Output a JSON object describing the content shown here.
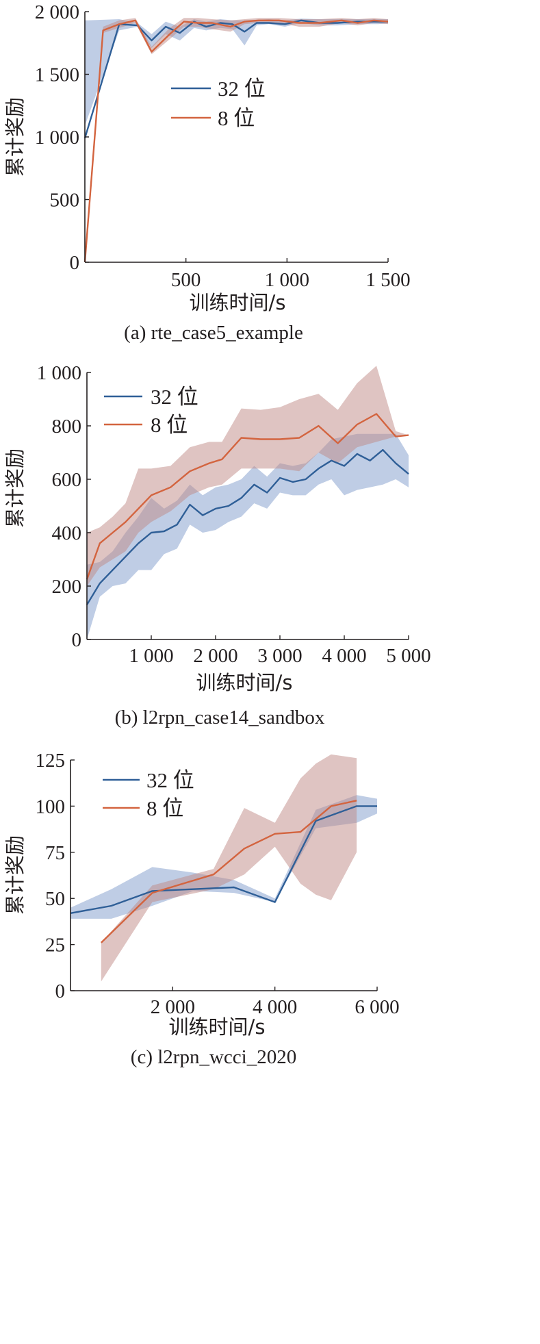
{
  "colors": {
    "s32_line": "#2f5f97",
    "s32_band": "#7f9ccb",
    "s8_line": "#d3643f",
    "s8_band": "#bf8a86",
    "axis": "#231f20"
  },
  "chart_data": [
    {
      "type": "line",
      "caption": "(a) rte_case5_example",
      "xlabel": "训练时间/s",
      "ylabel": "累计奖励",
      "xlim": [
        0,
        1500
      ],
      "ylim": [
        0,
        2000
      ],
      "xticks": [
        500,
        1000,
        1500
      ],
      "xtick_labels": [
        "500",
        "1 000",
        "1 500"
      ],
      "yticks": [
        0,
        500,
        1000,
        1500,
        2000
      ],
      "ytick_labels": [
        "0",
        "500",
        "1 000",
        "1 500",
        "2 000"
      ],
      "legend_position": "center",
      "series": [
        {
          "name": "32 位",
          "x": [
            0,
            170,
            260,
            330,
            400,
            470,
            540,
            600,
            670,
            730,
            790,
            850,
            910,
            990,
            1070,
            1160,
            1250,
            1350,
            1450,
            1500
          ],
          "y": [
            990,
            1900,
            1890,
            1770,
            1880,
            1830,
            1920,
            1880,
            1910,
            1900,
            1840,
            1910,
            1910,
            1900,
            1930,
            1910,
            1910,
            1920,
            1920,
            1920
          ],
          "band_low": [
            1090,
            1850,
            1880,
            1710,
            1820,
            1770,
            1870,
            1850,
            1870,
            1860,
            1730,
            1890,
            1900,
            1880,
            1910,
            1890,
            1890,
            1900,
            1900,
            1905
          ],
          "band_high": [
            1930,
            1940,
            1910,
            1820,
            1920,
            1880,
            1940,
            1920,
            1940,
            1930,
            1930,
            1935,
            1940,
            1930,
            1945,
            1940,
            1940,
            1940,
            1940,
            1940
          ]
        },
        {
          "name": "8 位",
          "x": [
            0,
            90,
            170,
            250,
            330,
            420,
            490,
            560,
            630,
            720,
            790,
            860,
            960,
            1060,
            1160,
            1270,
            1350,
            1430,
            1500
          ],
          "y": [
            0,
            1850,
            1900,
            1930,
            1680,
            1820,
            1920,
            1910,
            1910,
            1880,
            1920,
            1930,
            1930,
            1910,
            1910,
            1930,
            1910,
            1930,
            1920
          ],
          "band_low": [
            0,
            1830,
            1870,
            1910,
            1660,
            1780,
            1880,
            1880,
            1860,
            1840,
            1900,
            1910,
            1910,
            1880,
            1880,
            1910,
            1890,
            1910,
            1900
          ],
          "band_high": [
            0,
            1880,
            1930,
            1950,
            1720,
            1870,
            1950,
            1950,
            1940,
            1930,
            1940,
            1950,
            1950,
            1940,
            1940,
            1950,
            1940,
            1950,
            1940
          ]
        }
      ]
    },
    {
      "type": "line",
      "caption": "(b) l2rpn_case14_sandbox",
      "xlabel": "训练时间/s",
      "ylabel": "累计奖励",
      "xlim": [
        0,
        5000
      ],
      "ylim": [
        0,
        1000
      ],
      "xticks": [
        1000,
        2000,
        3000,
        4000,
        5000
      ],
      "xtick_labels": [
        "1 000",
        "2 000",
        "3 000",
        "4 000",
        "5 000"
      ],
      "yticks": [
        0,
        200,
        400,
        600,
        800,
        1000
      ],
      "ytick_labels": [
        "0",
        "200",
        "400",
        "600",
        "800",
        "1 000"
      ],
      "legend_position": "top-left",
      "series": [
        {
          "name": "32 位",
          "x": [
            0,
            200,
            400,
            600,
            800,
            1000,
            1200,
            1400,
            1600,
            1800,
            2000,
            2200,
            2400,
            2600,
            2800,
            3000,
            3200,
            3400,
            3600,
            3800,
            4000,
            4200,
            4400,
            4600,
            4800,
            5000
          ],
          "y": [
            130,
            210,
            260,
            310,
            360,
            400,
            405,
            430,
            505,
            465,
            490,
            500,
            530,
            580,
            550,
            605,
            590,
            600,
            640,
            670,
            650,
            695,
            670,
            710,
            660,
            620
          ],
          "band_low": [
            0,
            160,
            200,
            210,
            260,
            260,
            320,
            340,
            430,
            400,
            410,
            440,
            460,
            510,
            490,
            550,
            540,
            540,
            580,
            600,
            540,
            560,
            570,
            580,
            600,
            570
          ],
          "band_high": [
            280,
            290,
            330,
            400,
            460,
            530,
            490,
            520,
            580,
            540,
            570,
            580,
            600,
            650,
            610,
            660,
            650,
            660,
            700,
            750,
            760,
            770,
            770,
            770,
            770,
            690
          ]
        },
        {
          "name": "8 位",
          "x": [
            0,
            200,
            400,
            600,
            800,
            1000,
            1300,
            1600,
            1900,
            2100,
            2400,
            2700,
            3000,
            3300,
            3600,
            3900,
            4200,
            4500,
            4800,
            5000
          ],
          "y": [
            225,
            360,
            400,
            440,
            490,
            540,
            570,
            630,
            660,
            675,
            755,
            750,
            750,
            755,
            800,
            735,
            805,
            845,
            760,
            765
          ],
          "band_low": [
            200,
            270,
            300,
            330,
            400,
            440,
            480,
            540,
            570,
            580,
            640,
            640,
            640,
            630,
            700,
            660,
            720,
            740,
            760,
            765
          ],
          "band_high": [
            400,
            420,
            460,
            510,
            640,
            640,
            650,
            720,
            740,
            740,
            865,
            860,
            870,
            900,
            920,
            860,
            960,
            1025,
            780,
            765
          ]
        }
      ]
    },
    {
      "type": "line",
      "caption": "(c) l2rpn_wcci_2020",
      "xlabel": "训练时间/s",
      "ylabel": "累计奖励",
      "xlim": [
        0,
        6000
      ],
      "ylim": [
        0,
        125
      ],
      "xticks": [
        2000,
        4000,
        6000
      ],
      "xtick_labels": [
        "2 000",
        "4 000",
        "6 000"
      ],
      "yticks": [
        0,
        25,
        50,
        75,
        100,
        125
      ],
      "ytick_labels": [
        "0",
        "25",
        "50",
        "75",
        "100",
        "125"
      ],
      "legend_position": "top-left",
      "series": [
        {
          "name": "32 位",
          "x": [
            0,
            800,
            1600,
            2400,
            3200,
            4000,
            4800,
            5600,
            6000
          ],
          "y": [
            42,
            46,
            54,
            55,
            56,
            48,
            92,
            100,
            100
          ],
          "band_low": [
            39,
            39,
            46,
            54,
            53,
            48,
            88,
            91,
            96
          ],
          "band_high": [
            45,
            55,
            67,
            64,
            60,
            50,
            98,
            106,
            104
          ]
        },
        {
          "name": "8 位",
          "x": [
            600,
            1600,
            2800,
            3400,
            4000,
            4500,
            4800,
            5100,
            5600
          ],
          "y": [
            26,
            53,
            63,
            77,
            85,
            86,
            93,
            100,
            103
          ],
          "band_low": [
            5,
            48,
            55,
            63,
            78,
            58,
            52,
            49,
            75
          ],
          "band_high": [
            26,
            57,
            66,
            99,
            91,
            115,
            123,
            128,
            126
          ]
        }
      ]
    }
  ]
}
